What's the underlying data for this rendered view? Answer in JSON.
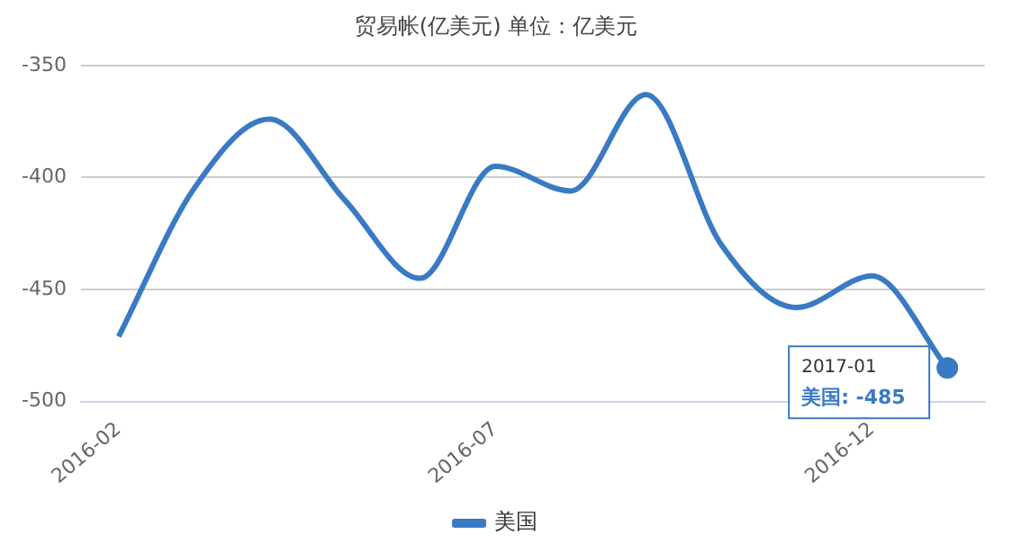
{
  "chart_data": {
    "type": "line",
    "title": "贸易帐(亿美元) 单位：亿美元",
    "categories": [
      "2016-02",
      null,
      null,
      null,
      null,
      "2016-07",
      null,
      null,
      null,
      null,
      "2016-12",
      null
    ],
    "series": [
      {
        "name": "美国",
        "color": "#3a7ac4",
        "values": [
          -471,
          -405,
          -374,
          -410,
          -445,
          -395,
          -406,
          -363,
          -430,
          -458,
          -444,
          -485
        ]
      }
    ],
    "ylim": [
      -500,
      -350
    ],
    "yticks": [
      -500,
      -450,
      -400,
      -350
    ],
    "grid": "y",
    "legend": "bottom",
    "marker": "none",
    "line_style": "solid",
    "annotations": [
      "2017-01",
      "美国: -485"
    ]
  }
}
